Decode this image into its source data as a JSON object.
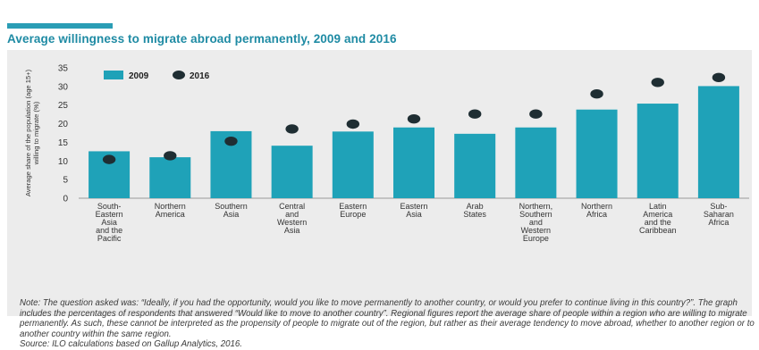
{
  "title": "Average willingness to migrate abroad permanently, 2009 and 2016",
  "colors": {
    "accent": "#2a9db5",
    "bar": "#1fa2b8",
    "dot": "#1f2e33",
    "title": "#1f8ba4"
  },
  "chart_data": {
    "type": "bar",
    "categories": [
      [
        "South-",
        "Eastern",
        "Asia",
        "and the",
        "Pacific"
      ],
      [
        "Northern",
        "America"
      ],
      [
        "Southern",
        "Asia"
      ],
      [
        "Central",
        "and",
        "Western",
        "Asia"
      ],
      [
        "Eastern",
        "Europe"
      ],
      [
        "Eastern",
        "Asia"
      ],
      [
        "Arab",
        "States"
      ],
      [
        "Northern,",
        "Southern",
        "and",
        "Western",
        "Europe"
      ],
      [
        "Northern",
        "Africa"
      ],
      [
        "Latin",
        "America",
        "and the",
        "Caribbean"
      ],
      [
        "Sub-",
        "Saharan",
        "Africa"
      ]
    ],
    "series": [
      {
        "name": "2009",
        "marker": "bar",
        "values": [
          12.6,
          11.0,
          18.0,
          14.1,
          17.9,
          19.0,
          17.3,
          19.0,
          23.8,
          25.4,
          30.1
        ]
      },
      {
        "name": "2016",
        "marker": "dot",
        "values": [
          10.4,
          11.4,
          15.3,
          18.6,
          19.9,
          21.3,
          22.6,
          22.6,
          28.0,
          31.1,
          32.4
        ]
      }
    ],
    "ylabel": "Average share of the population (age 15+) willing to migrate (%)",
    "yticks": [
      0,
      5,
      10,
      15,
      20,
      25,
      30,
      35
    ],
    "ylim": [
      0,
      35
    ],
    "grid": false,
    "legend_position": "top-left"
  },
  "note": "Note: The question asked was: “Ideally, if you had the opportunity, would you like to move permanently to another country, or would you prefer to continue living in this country?”. The graph includes the percentages of respondents that answered “Would like to move to another country”. Regional figures report the average share of people within a region who are willing to migrate permanently. As such, these cannot be interpreted as the propensity of people to migrate out of the region, but rather as their average tendency to move abroad, whether to another region or to another country within the same region.",
  "source": "Source: ILO calculations based on Gallup Analytics, 2016."
}
